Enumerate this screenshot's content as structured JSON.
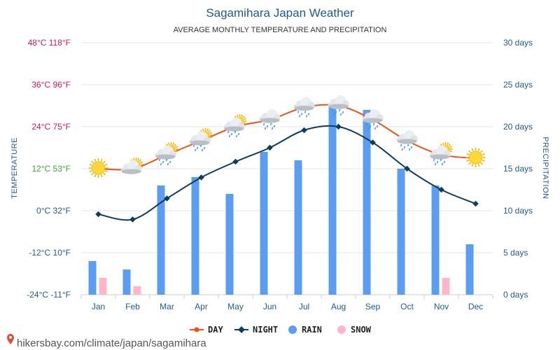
{
  "chart_data": {
    "type": "line",
    "title": "Sagamihara Japan Weather",
    "subtitle": "AVERAGE MONTHLY TEMPERATURE AND PRECIPITATION",
    "ylabel_left": "TEMPERATURE",
    "ylabel_right": "PRECIPITATION",
    "categories": [
      "Jan",
      "Feb",
      "Mar",
      "Apr",
      "May",
      "Jun",
      "Jul",
      "Aug",
      "Sep",
      "Oct",
      "Nov",
      "Dec"
    ],
    "ylim_left": [
      -24,
      48
    ],
    "ylim_right": [
      0,
      30
    ],
    "left_ticks": [
      {
        "value": 48,
        "label": "48°C 118°F",
        "color": "#d6145a"
      },
      {
        "value": 36,
        "label": "36°C 96°F",
        "color": "#d6145a"
      },
      {
        "value": 24,
        "label": "24°C 75°F",
        "color": "#d6145a"
      },
      {
        "value": 12,
        "label": "12°C 53°F",
        "color": "#3aa63a"
      },
      {
        "value": 0,
        "label": "0°C 32°F",
        "color": "#1f5a8c"
      },
      {
        "value": -12,
        "label": "-12°C 10°F",
        "color": "#1f5a8c"
      },
      {
        "value": -24,
        "label": "-24°C -11°F",
        "color": "#1f5a8c"
      }
    ],
    "right_ticks": [
      {
        "value": 30,
        "label": "30 days"
      },
      {
        "value": 25,
        "label": "25 days"
      },
      {
        "value": 20,
        "label": "20 days"
      },
      {
        "value": 15,
        "label": "15 days"
      },
      {
        "value": 10,
        "label": "10 days"
      },
      {
        "value": 5,
        "label": "5 days"
      },
      {
        "value": 0,
        "label": "0 days"
      }
    ],
    "series": [
      {
        "name": "DAY",
        "kind": "line",
        "axis": "left",
        "color": "#e8541a",
        "values": [
          12,
          12,
          16,
          20,
          24,
          26,
          29.5,
          30,
          26,
          20,
          16,
          15
        ]
      },
      {
        "name": "NIGHT",
        "kind": "line",
        "axis": "left",
        "color": "#0e3d5c",
        "values": [
          -1,
          -2.5,
          3.5,
          9.5,
          14,
          18,
          23,
          24,
          19.5,
          12,
          6,
          2
        ]
      },
      {
        "name": "RAIN",
        "kind": "bar",
        "axis": "right",
        "color": "#5b9df0",
        "values": [
          4,
          3,
          13,
          14,
          12,
          17,
          16,
          22.5,
          22,
          15,
          13,
          6
        ]
      },
      {
        "name": "SNOW",
        "kind": "bar",
        "axis": "right",
        "color": "#ffb6c8",
        "values": [
          2,
          1,
          0,
          0,
          0,
          0,
          0,
          0,
          0,
          0,
          2,
          0
        ]
      }
    ],
    "weather_icons": [
      "sun",
      "partly-cloudy",
      "partly-cloudy-rain",
      "partly-cloudy-rain",
      "partly-cloudy-rain",
      "cloud-rain",
      "cloud-rain",
      "cloud-rain",
      "cloud-rain",
      "cloud-rain",
      "partly-cloudy-rain",
      "sun"
    ],
    "grid": true,
    "legend_placement": "bottom"
  },
  "footer": {
    "text": "hikersbay.com/climate/japan/sagamihara",
    "pin_color": "#e84a3a"
  }
}
